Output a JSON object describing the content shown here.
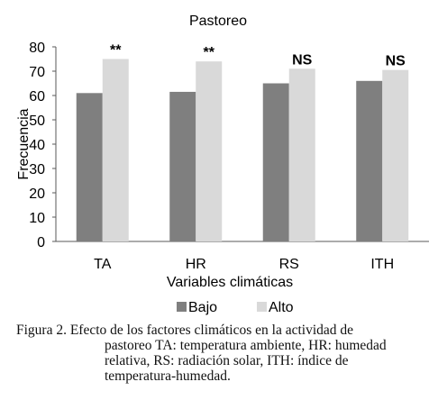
{
  "chart_data": {
    "type": "bar",
    "title": "Pastoreo",
    "xlabel": "Variables climáticas",
    "ylabel": "Frecuencia",
    "ylim": [
      0,
      80
    ],
    "yticks": [
      0,
      10,
      20,
      30,
      40,
      50,
      60,
      70,
      80
    ],
    "grid": false,
    "legend_position": "bottom",
    "categories": [
      "TA",
      "HR",
      "RS",
      "ITH"
    ],
    "series": [
      {
        "name": "Bajo",
        "color": "#7f7f7f",
        "values": [
          61,
          61.5,
          65,
          66
        ]
      },
      {
        "name": "Alto",
        "color": "#d9d9d9",
        "values": [
          75,
          74,
          71,
          70.5
        ]
      }
    ],
    "annotations": [
      "**",
      "**",
      "NS",
      "NS"
    ]
  },
  "caption": {
    "lines": [
      "Figura 2. Efecto de los factores climáticos en la actividad de",
      "pastoreo TA: temperatura ambiente, HR: humedad",
      "relativa, RS: radiación solar, ITH: índice de",
      "temperatura-humedad."
    ]
  }
}
